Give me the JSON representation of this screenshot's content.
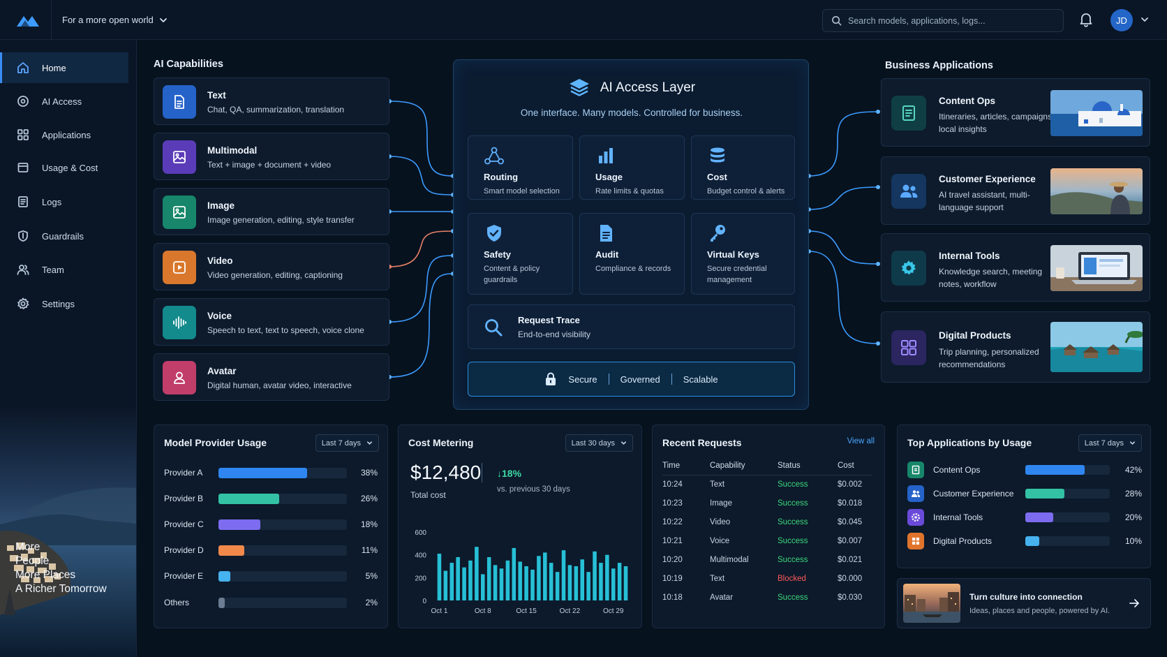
{
  "header": {
    "tagline": "For a more open world",
    "search_placeholder": "Search models, applications, logs...",
    "avatar_initials": "JD"
  },
  "sidebar": {
    "items": [
      {
        "label": "Home",
        "icon": "home-icon",
        "active": true
      },
      {
        "label": "AI Access",
        "icon": "ai-access-icon"
      },
      {
        "label": "Applications",
        "icon": "grid-icon"
      },
      {
        "label": "Usage & Cost",
        "icon": "usage-icon"
      },
      {
        "label": "Logs",
        "icon": "logs-icon"
      },
      {
        "label": "Guardrails",
        "icon": "shield-icon"
      },
      {
        "label": "Team",
        "icon": "team-icon"
      },
      {
        "label": "Settings",
        "icon": "gear-icon"
      }
    ],
    "slogan": [
      "More",
      "People",
      "More Places",
      "A Richer Tomorrow"
    ]
  },
  "capabilities": {
    "title": "AI Capabilities",
    "items": [
      {
        "title": "Text",
        "desc": "Chat, QA, summarization, translation",
        "color": "#2563c9"
      },
      {
        "title": "Multimodal",
        "desc": "Text + image + document + video",
        "color": "#5b3cb8"
      },
      {
        "title": "Image",
        "desc": "Image generation, editing, style transfer",
        "color": "#17866a"
      },
      {
        "title": "Video",
        "desc": "Video generation, editing, captioning",
        "color": "#d9782c"
      },
      {
        "title": "Voice",
        "desc": "Speech to text, text to speech, voice clone",
        "color": "#138a8c"
      },
      {
        "title": "Avatar",
        "desc": "Digital human, avatar video, interactive",
        "color": "#c13d6a"
      }
    ]
  },
  "access_layer": {
    "title": "AI Access Layer",
    "subtitle": "One interface. Many models. Controlled for business.",
    "modules": [
      {
        "title": "Routing",
        "desc": "Smart model selection"
      },
      {
        "title": "Usage",
        "desc": "Rate limits & quotas"
      },
      {
        "title": "Cost",
        "desc": "Budget control & alerts"
      },
      {
        "title": "Safety",
        "desc": "Content & policy guardrails"
      },
      {
        "title": "Audit",
        "desc": "Compliance & records"
      },
      {
        "title": "Virtual Keys",
        "desc": "Secure credential management"
      }
    ],
    "trace": {
      "title": "Request Trace",
      "desc": "End-to-end visibility"
    },
    "pill": [
      "Secure",
      "Governed",
      "Scalable"
    ]
  },
  "business": {
    "title": "Business Applications",
    "items": [
      {
        "title": "Content Ops",
        "desc": "Itineraries, articles, campaigns, local insights",
        "color": "#0f3f44",
        "icon_color": "#58d6c4"
      },
      {
        "title": "Customer Experience",
        "desc": "AI travel assistant, multi-language support",
        "color": "#14365f",
        "icon_color": "#5aa9ff"
      },
      {
        "title": "Internal Tools",
        "desc": "Knowledge search, meeting notes, workflow",
        "color": "#0f3a4a",
        "icon_color": "#38c7e8"
      },
      {
        "title": "Digital Products",
        "desc": "Trip planning, personalized recommendations",
        "color": "#2b2560",
        "icon_color": "#9c8cff"
      }
    ]
  },
  "provider_usage": {
    "title": "Model Provider Usage",
    "range": "Last 7 days",
    "rows": [
      {
        "label": "Provider A",
        "value": 38,
        "pct": "38%",
        "color": "#2f86f0"
      },
      {
        "label": "Provider B",
        "value": 26,
        "pct": "26%",
        "color": "#33c2a4"
      },
      {
        "label": "Provider C",
        "value": 18,
        "pct": "18%",
        "color": "#7d6cf0"
      },
      {
        "label": "Provider D",
        "value": 11,
        "pct": "11%",
        "color": "#f0894a"
      },
      {
        "label": "Provider E",
        "value": 5,
        "pct": "5%",
        "color": "#46b2f0"
      },
      {
        "label": "Others",
        "value": 2,
        "pct": "2%",
        "color": "#6b7d93"
      }
    ]
  },
  "cost": {
    "title": "Cost Metering",
    "range": "Last 30 days",
    "total": "$12,480",
    "change": "↓18%",
    "vs": "vs. previous 30 days",
    "total_label": "Total cost"
  },
  "chart_data": {
    "type": "bar",
    "categories": [
      "Oct 1",
      "Oct 2",
      "Oct 3",
      "Oct 4",
      "Oct 5",
      "Oct 6",
      "Oct 7",
      "Oct 8",
      "Oct 9",
      "Oct 10",
      "Oct 11",
      "Oct 12",
      "Oct 13",
      "Oct 14",
      "Oct 15",
      "Oct 16",
      "Oct 17",
      "Oct 18",
      "Oct 19",
      "Oct 20",
      "Oct 21",
      "Oct 22",
      "Oct 23",
      "Oct 24",
      "Oct 25",
      "Oct 26",
      "Oct 27",
      "Oct 28",
      "Oct 29",
      "Oct 30",
      "Oct 31"
    ],
    "values": [
      410,
      260,
      330,
      380,
      290,
      350,
      470,
      230,
      380,
      310,
      280,
      350,
      460,
      340,
      300,
      270,
      390,
      420,
      330,
      250,
      440,
      310,
      300,
      360,
      250,
      430,
      330,
      400,
      280,
      330,
      300
    ],
    "ylim": [
      0,
      600
    ],
    "yticks": [
      "0",
      "200",
      "400",
      "600"
    ],
    "xticks": [
      "Oct 1",
      "Oct 8",
      "Oct 15",
      "Oct 22",
      "Oct 29"
    ],
    "color": "#27c0d6"
  },
  "recent": {
    "title": "Recent Requests",
    "view_all": "View all",
    "columns": [
      "Time",
      "Capability",
      "Status",
      "Cost"
    ],
    "rows": [
      [
        "10:24",
        "Text",
        "Success",
        "$0.002"
      ],
      [
        "10:23",
        "Image",
        "Success",
        "$0.018"
      ],
      [
        "10:22",
        "Video",
        "Success",
        "$0.045"
      ],
      [
        "10:21",
        "Voice",
        "Success",
        "$0.007"
      ],
      [
        "10:20",
        "Multimodal",
        "Success",
        "$0.021"
      ],
      [
        "10:19",
        "Text",
        "Blocked",
        "$0.000"
      ],
      [
        "10:18",
        "Avatar",
        "Success",
        "$0.030"
      ]
    ]
  },
  "top_apps": {
    "title": "Top Applications by Usage",
    "range": "Last 7 days",
    "rows": [
      {
        "label": "Content Ops",
        "value": 42,
        "pct": "42%",
        "color": "#2f86f0",
        "icon_bg": "#17866a"
      },
      {
        "label": "Customer Experience",
        "value": 28,
        "pct": "28%",
        "color": "#33c2a4",
        "icon_bg": "#2563c9"
      },
      {
        "label": "Internal Tools",
        "value": 20,
        "pct": "20%",
        "color": "#7d6cf0",
        "icon_bg": "#6a4ad8"
      },
      {
        "label": "Digital Products",
        "value": 10,
        "pct": "10%",
        "color": "#46b2f0",
        "icon_bg": "#e0742c"
      }
    ]
  },
  "promo": {
    "title": "Turn culture into connection",
    "desc": "Ideas, places and people, powered by AI."
  }
}
